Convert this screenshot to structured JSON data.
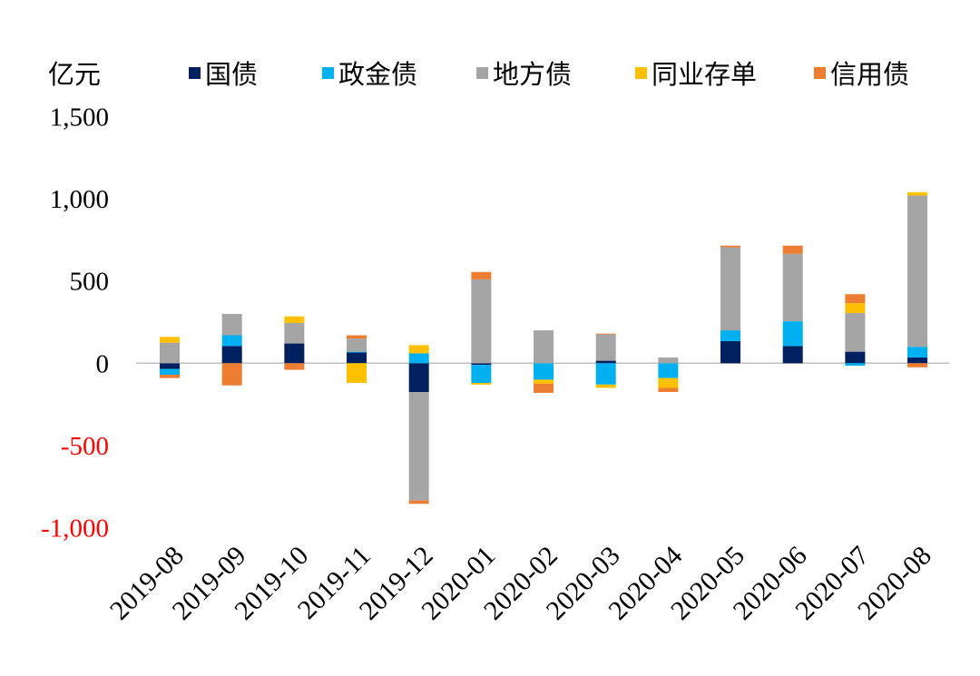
{
  "chart_data": {
    "type": "bar",
    "stacked": true,
    "ylabel": "亿元",
    "categories": [
      "2019-08",
      "2019-09",
      "2019-10",
      "2019-11",
      "2019-12",
      "2020-01",
      "2020-02",
      "2020-03",
      "2020-04",
      "2020-05",
      "2020-06",
      "2020-07",
      "2020-08"
    ],
    "ylim": [
      -1000,
      1500
    ],
    "yticks": [
      1500,
      1000,
      500,
      0,
      -500,
      -1000
    ],
    "ytick_labels": [
      "1,500",
      "1,000",
      "500",
      "0",
      "-500",
      "-1,000"
    ],
    "grid": false,
    "legend_position": "top",
    "tick_color": "#000000",
    "negative_tick_color": "#ff0000",
    "axis_color": "#bfbfbf",
    "series": [
      {
        "name": "国债",
        "color": "#002060",
        "values": [
          -35,
          105,
          120,
          65,
          -175,
          -10,
          0,
          15,
          0,
          135,
          105,
          70,
          35
        ]
      },
      {
        "name": "政金债",
        "color": "#00b0f0",
        "values": [
          -35,
          65,
          0,
          5,
          60,
          -110,
          -100,
          -130,
          -90,
          65,
          150,
          -15,
          65
        ]
      },
      {
        "name": "地方债",
        "color": "#a5a5a5",
        "values": [
          125,
          130,
          125,
          80,
          -660,
          510,
          200,
          160,
          35,
          505,
          410,
          235,
          920
        ]
      },
      {
        "name": "同业存单",
        "color": "#ffc000",
        "values": [
          35,
          0,
          40,
          -120,
          50,
          -10,
          -25,
          -20,
          -60,
          0,
          0,
          60,
          20
        ]
      },
      {
        "name": "信用债",
        "color": "#ed7d31",
        "values": [
          -20,
          -135,
          -40,
          20,
          -20,
          45,
          -55,
          5,
          -25,
          10,
          50,
          55,
          -25
        ]
      }
    ]
  }
}
